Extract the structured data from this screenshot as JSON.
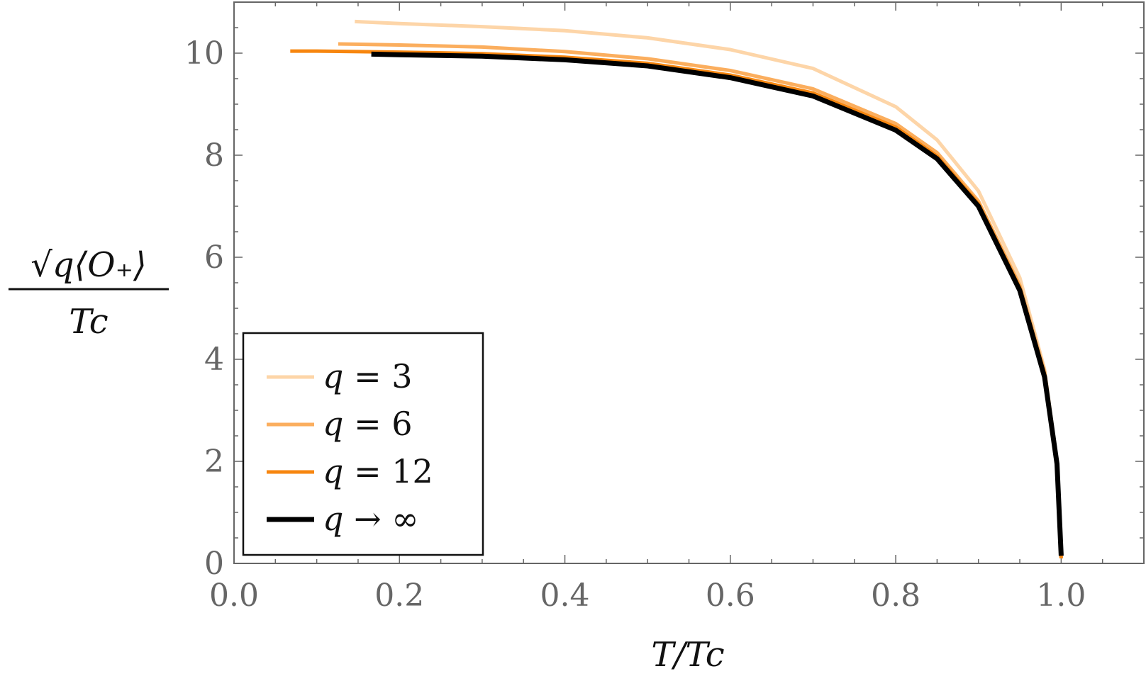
{
  "chart_data": {
    "type": "line",
    "xlabel": "T/Tc",
    "ylabel_numerator": "√q⟨O₊⟩",
    "ylabel_denominator": "Tc",
    "xlim": [
      0.0,
      1.1
    ],
    "ylim": [
      0,
      11
    ],
    "x_ticks": [
      0.0,
      0.2,
      0.4,
      0.6,
      0.8,
      1.0
    ],
    "x_tick_labels": [
      "0.0",
      "0.2",
      "0.4",
      "0.6",
      "0.8",
      "1.0"
    ],
    "y_ticks": [
      0,
      2,
      4,
      6,
      8,
      10
    ],
    "y_tick_labels": [
      "0",
      "2",
      "4",
      "6",
      "8",
      "10"
    ],
    "grid": false,
    "legend_position": "bottom-left",
    "series": [
      {
        "name": "q = 3",
        "var": "q",
        "op": " = ",
        "rhs": "3",
        "color": "#fdd5a8",
        "x": [
          0.146,
          0.2,
          0.3,
          0.4,
          0.5,
          0.6,
          0.7,
          0.8,
          0.85,
          0.9,
          0.95,
          0.98,
          0.995,
          1.0
        ],
        "y": [
          10.62,
          10.58,
          10.52,
          10.44,
          10.3,
          10.07,
          9.7,
          8.95,
          8.3,
          7.3,
          5.6,
          3.8,
          2.0,
          0.1
        ]
      },
      {
        "name": "q = 6",
        "var": "q",
        "op": " = ",
        "rhs": "6",
        "color": "#fbae5e",
        "x": [
          0.126,
          0.2,
          0.3,
          0.4,
          0.5,
          0.6,
          0.7,
          0.8,
          0.85,
          0.9,
          0.95,
          0.98,
          0.995,
          1.0
        ],
        "y": [
          10.18,
          10.16,
          10.12,
          10.03,
          9.89,
          9.66,
          9.3,
          8.62,
          8.05,
          7.1,
          5.45,
          3.75,
          2.0,
          0.1
        ]
      },
      {
        "name": "q = 12",
        "var": "q",
        "op": " = ",
        "rhs": "12",
        "color": "#f7860f",
        "x": [
          0.068,
          0.1,
          0.2,
          0.3,
          0.4,
          0.5,
          0.6,
          0.7,
          0.8,
          0.85,
          0.9,
          0.95,
          0.98,
          0.995,
          1.0
        ],
        "y": [
          10.04,
          10.04,
          10.02,
          9.99,
          9.92,
          9.8,
          9.57,
          9.22,
          8.55,
          7.98,
          7.05,
          5.4,
          3.7,
          2.0,
          0.1
        ]
      },
      {
        "name": "q → ∞",
        "var": "q",
        "op": " → ",
        "rhs": "∞",
        "color": "#000000",
        "x": [
          0.166,
          0.2,
          0.3,
          0.4,
          0.5,
          0.6,
          0.7,
          0.8,
          0.85,
          0.9,
          0.95,
          0.98,
          0.995,
          1.0
        ],
        "y": [
          9.98,
          9.97,
          9.94,
          9.87,
          9.75,
          9.52,
          9.16,
          8.49,
          7.93,
          7.0,
          5.35,
          3.65,
          1.95,
          0.15
        ]
      }
    ]
  }
}
